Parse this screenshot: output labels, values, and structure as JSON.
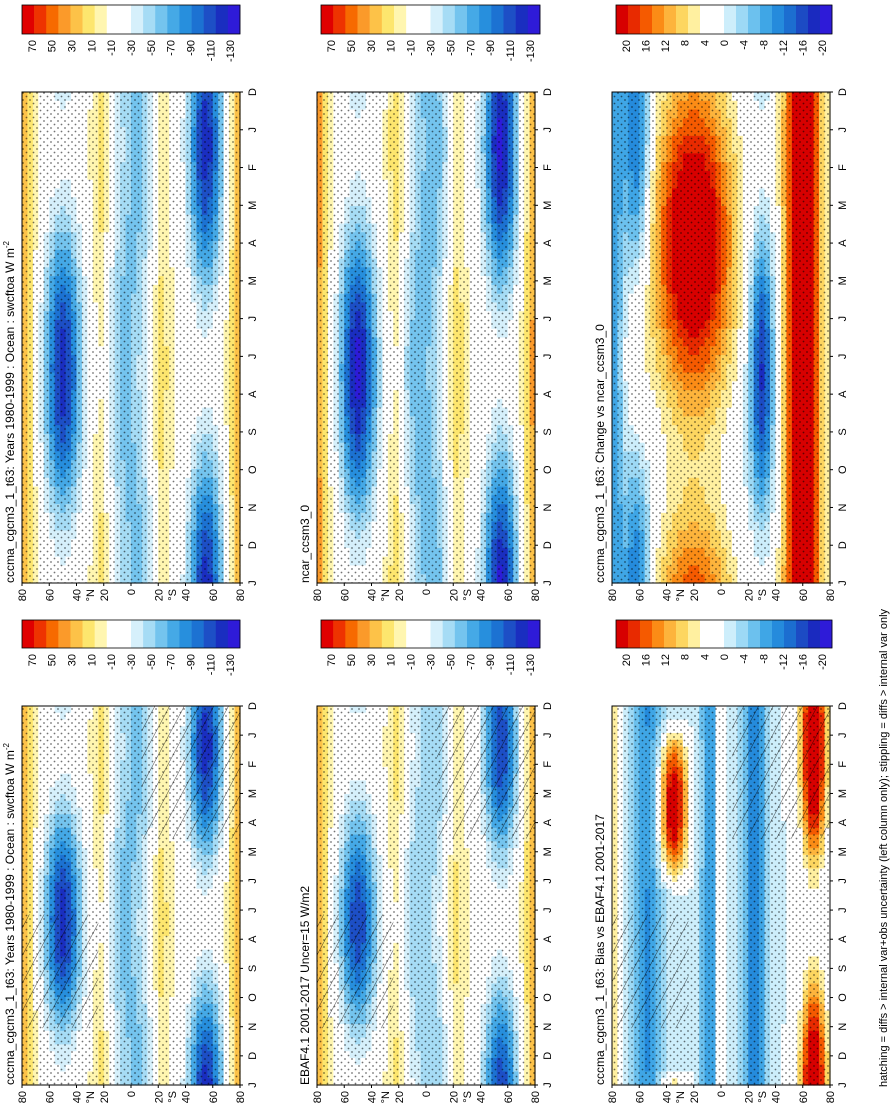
{
  "figure": {
    "footer_note": "hatching = diffs > internal var+obs uncertainty (left column only); stippling = diffs > internal var only"
  },
  "shared": {
    "y_ticks": [
      "80",
      "60",
      "40",
      "N",
      "20",
      "0",
      "20",
      "S",
      "40",
      "60",
      "80"
    ],
    "month_ticks": [
      "D",
      "J",
      "F",
      "M",
      "A",
      "M",
      "J",
      "J",
      "A",
      "S",
      "O",
      "N",
      "D",
      "J"
    ],
    "units_main": "W m",
    "units_exp": "-2"
  },
  "colorbars": {
    "raw": {
      "labels": [
        "70",
        "50",
        "30",
        "10",
        "-10",
        "-30",
        "-50",
        "-70",
        "-90",
        "-110",
        "-130"
      ],
      "colors": [
        "#e00000",
        "#ee3300",
        "#f76a00",
        "#fb9a2a",
        "#fdc248",
        "#fde66e",
        "#fff6b0",
        "#ffffff",
        "#ffffff",
        "#d6f0fb",
        "#a6dcf5",
        "#74c4ee",
        "#45a9e6",
        "#278fdd",
        "#1c72d2",
        "#1d4fc6",
        "#1a2ec0",
        "#2e1bd8"
      ]
    },
    "diff": {
      "labels": [
        "20",
        "16",
        "12",
        "8",
        "4",
        "0",
        "-4",
        "-8",
        "-12",
        "-16",
        "-20"
      ],
      "colors": [
        "#d70000",
        "#e82a00",
        "#f55a00",
        "#fb8c16",
        "#fdb43c",
        "#fdd660",
        "#fff0a0",
        "#ffffff",
        "#ffffff",
        "#cdeefb",
        "#9dd9f5",
        "#6cc1ee",
        "#3fa6e6",
        "#258bdc",
        "#1c6ed0",
        "#1c4bc4",
        "#1a2abf",
        "#2e1bd8"
      ]
    }
  },
  "panels": [
    {
      "id": "r1c1",
      "title": "cccma_cgcm3_1_t63: Years 1980-1999 : Ocean : swcftoa",
      "show_units": true,
      "cbar": "raw",
      "hatch": true
    },
    {
      "id": "r1c2",
      "title": "cccma_cgcm3_1_t63: Years 1980-1999 : Ocean : swcftoa",
      "show_units": true,
      "cbar": "raw",
      "hatch": false
    },
    {
      "id": "r2c1",
      "title": "EBAF4.1 2001-2017 Uncer=15 W/m2",
      "show_units": false,
      "cbar": "raw",
      "hatch": true
    },
    {
      "id": "r2c2",
      "title": "ncar_ccsm3_0",
      "show_units": false,
      "cbar": "raw",
      "hatch": false
    },
    {
      "id": "r3c1",
      "title": "cccma_cgcm3_1_t63: Bias vs EBAF4.1 2001-2017",
      "show_units": false,
      "cbar": "diff",
      "hatch": true
    },
    {
      "id": "r3c2",
      "title": "cccma_cgcm3_1_t63: Change vs ncar_ccsm3_0",
      "show_units": false,
      "cbar": "diff",
      "hatch": false
    }
  ],
  "chart_data": [
    {
      "type": "heatmap",
      "panel": "r1c1",
      "title": "cccma_cgcm3_1_t63: Years 1980-1999 : Ocean : swcftoa",
      "units": "W m-2",
      "x": "month (D..J)",
      "y": "latitude 80N..80S",
      "field": "swcftoa",
      "range": [
        -130,
        70
      ],
      "notes": "blue minima near 40-60S and 40-60N summer; yellow positive polar edges"
    },
    {
      "type": "heatmap",
      "panel": "r1c2",
      "title": "cccma_cgcm3_1_t63: Years 1980-1999 : Ocean : swcftoa",
      "units": "W m-2",
      "field": "swcftoa",
      "range": [
        -130,
        70
      ]
    },
    {
      "type": "heatmap",
      "panel": "r2c1",
      "title": "EBAF4.1 2001-2017 Uncer=15 W/m2",
      "field": "swcftoa",
      "range": [
        -130,
        70
      ]
    },
    {
      "type": "heatmap",
      "panel": "r2c2",
      "title": "ncar_ccsm3_0",
      "field": "swcftoa",
      "range": [
        -130,
        70
      ]
    },
    {
      "type": "heatmap",
      "panel": "r3c1",
      "title": "cccma_cgcm3_1_t63: Bias vs EBAF4.1 2001-2017",
      "field": "swcftoa difference",
      "range": [
        -20,
        20
      ]
    },
    {
      "type": "heatmap",
      "panel": "r3c2",
      "title": "cccma_cgcm3_1_t63: Change vs ncar_ccsm3_0",
      "field": "swcftoa difference",
      "range": [
        -20,
        20
      ]
    }
  ]
}
